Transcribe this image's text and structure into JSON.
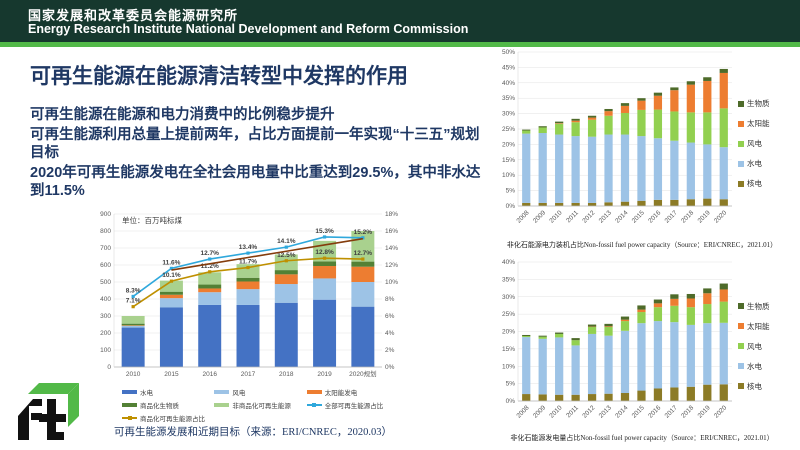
{
  "header": {
    "cn_title": "国家发展和改革委员会能源研究所",
    "en_title": "Energy Research Institute National Development and Reform Commission"
  },
  "colors": {
    "header_bg": "#16382E",
    "header_stripe": "#52B948",
    "text_navy": "#1F3864"
  },
  "slide": {
    "title": "可再生能源在能源清洁转型中发挥的作用",
    "paragraphs": [
      "可再生能源在能源和电力消费中的比例稳步提升",
      "可再生能源利用总量上提前两年，占比方面提前一年实现“十三五”规划目标",
      "2020年可再生能源发电在全社会用电量中比重达到29.5%，其中非水达到11.5%"
    ]
  },
  "chart_data": [
    {
      "type": "bar+line",
      "stacked": true,
      "unit_label": "单位：百万吨标煤",
      "caption": "可再生能源发展和近期目标（来源：ERI/CNREC，2020.03）",
      "categories": [
        "2010",
        "2015",
        "2016",
        "2017",
        "2018",
        "2019",
        "2020规划"
      ],
      "bar_series": [
        {
          "name": "水电",
          "color": "#4472C4",
          "values": [
            232,
            350,
            365,
            365,
            378,
            396,
            355
          ]
        },
        {
          "name": "风电",
          "color": "#9DC3E6",
          "values": [
            10,
            55,
            75,
            93,
            110,
            125,
            145
          ]
        },
        {
          "name": "太阳能发电",
          "color": "#ED7D31",
          "values": [
            3,
            20,
            22,
            45,
            57,
            73,
            90
          ]
        },
        {
          "name": "商品化生物质",
          "color": "#538135",
          "values": [
            10,
            18,
            23,
            22,
            25,
            27,
            30
          ]
        },
        {
          "name": "非商品化可再生能源",
          "color": "#A9D18E",
          "values": [
            45,
            65,
            72,
            80,
            92,
            121,
            180
          ]
        }
      ],
      "line_series": [
        {
          "name": "全部可再生能源占比",
          "color": "#2FA8DC",
          "values": [
            8.3,
            11.6,
            12.7,
            13.4,
            14.1,
            15.3,
            15.2
          ],
          "show_labels": true,
          "in_legend": true
        },
        {
          "name": "商品化可再生能源占比",
          "color": "#BF9000",
          "values": [
            7.1,
            10.1,
            11.2,
            11.7,
            12.5,
            12.8,
            12.7
          ],
          "show_labels": true,
          "in_legend": true
        },
        {
          "name": "",
          "color": "#843C0C",
          "values": [
            null,
            11.4,
            12.14,
            12.88,
            13.62,
            14.36,
            15.1
          ],
          "show_labels": false,
          "in_legend": false,
          "marker": false
        }
      ],
      "left_axis": {
        "min": 0,
        "max": 900,
        "step": 100,
        "suffix": ""
      },
      "right_axis": {
        "min": 0,
        "max": 18,
        "step": 2,
        "suffix": "%"
      },
      "grid": true,
      "legend_position": "bottom"
    },
    {
      "type": "bar",
      "stacked": true,
      "caption": "非化石能源电力装机占比Non-fossil fuel power capacity（Source：ERI/CNREC，2021.01）",
      "categories": [
        "2008",
        "2009",
        "2010",
        "2011",
        "2012",
        "2013",
        "2014",
        "2015",
        "2016",
        "2017",
        "2018",
        "2019",
        "2020"
      ],
      "series": [
        {
          "name": "核电",
          "color": "#8C7B26",
          "values": [
            1.0,
            1.0,
            1.0,
            1.0,
            1.0,
            1.2,
            1.4,
            1.7,
            2.0,
            2.0,
            2.2,
            2.4,
            2.2
          ]
        },
        {
          "name": "水电",
          "color": "#9DC3E6",
          "values": [
            22.5,
            22.7,
            22.2,
            21.7,
            21.5,
            22.0,
            21.8,
            21.0,
            20.0,
            19.2,
            18.4,
            17.6,
            16.9
          ]
        },
        {
          "name": "风电",
          "color": "#92D050",
          "values": [
            1.0,
            1.8,
            3.5,
            4.5,
            5.5,
            6.1,
            7.0,
            8.5,
            9.3,
            9.5,
            9.8,
            10.4,
            12.6
          ]
        },
        {
          "name": "太阳能",
          "color": "#ED7D31",
          "values": [
            0.0,
            0.0,
            0.2,
            0.5,
            0.7,
            1.5,
            2.3,
            3.0,
            4.5,
            6.9,
            9.0,
            10.2,
            11.5
          ]
        },
        {
          "name": "生物质",
          "color": "#4E6B2A",
          "values": [
            0.3,
            0.4,
            0.5,
            0.6,
            0.6,
            0.7,
            0.9,
            0.8,
            1.0,
            0.9,
            1.1,
            1.2,
            1.3
          ]
        }
      ],
      "y_axis": {
        "min": 0,
        "max": 50,
        "step": 5,
        "suffix": "%"
      },
      "grid": true,
      "legend_position": "right"
    },
    {
      "type": "bar",
      "stacked": true,
      "caption": "非化石能源发电量占比Non-fossil fuel power capacity（Source：ERI/CNREC，2021.01）",
      "categories": [
        "2008",
        "2009",
        "2010",
        "2011",
        "2012",
        "2013",
        "2014",
        "2015",
        "2016",
        "2017",
        "2018",
        "2019",
        "2020"
      ],
      "series": [
        {
          "name": "核电",
          "color": "#8C7B26",
          "values": [
            2.0,
            1.9,
            1.8,
            1.8,
            2.0,
            2.1,
            2.3,
            3.0,
            3.6,
            3.9,
            4.1,
            4.7,
            4.8
          ]
        },
        {
          "name": "水电",
          "color": "#9DC3E6",
          "values": [
            16.4,
            16.0,
            16.5,
            14.2,
            17.3,
            16.7,
            17.9,
            19.4,
            19.4,
            18.8,
            17.8,
            17.7,
            17.7
          ]
        },
        {
          "name": "风电",
          "color": "#92D050",
          "values": [
            0.3,
            0.6,
            1.0,
            1.5,
            2.0,
            2.5,
            2.8,
            3.2,
            4.0,
            4.7,
            5.1,
            5.5,
            6.1
          ]
        },
        {
          "name": "太阳能",
          "color": "#ED7D31",
          "values": [
            0.0,
            0.0,
            0.0,
            0.0,
            0.1,
            0.2,
            0.4,
            0.7,
            1.1,
            2.0,
            2.5,
            3.1,
            3.5
          ]
        },
        {
          "name": "生物质",
          "color": "#4E6B2A",
          "values": [
            0.3,
            0.3,
            0.4,
            0.6,
            0.6,
            0.7,
            0.9,
            1.2,
            1.1,
            1.3,
            1.3,
            1.4,
            1.7
          ]
        }
      ],
      "y_axis": {
        "min": 0,
        "max": 40,
        "step": 5,
        "suffix": "%"
      },
      "grid": true,
      "legend_position": "right"
    }
  ]
}
